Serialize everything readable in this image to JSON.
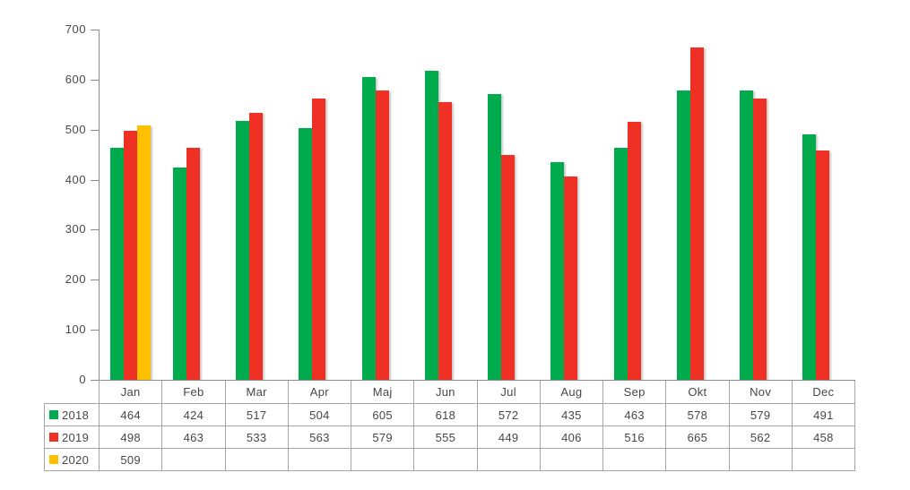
{
  "chart_data": {
    "type": "bar",
    "title": "",
    "xlabel": "",
    "ylabel": "",
    "categories": [
      "Jan",
      "Feb",
      "Mar",
      "Apr",
      "Maj",
      "Jun",
      "Jul",
      "Aug",
      "Sep",
      "Okt",
      "Nov",
      "Dec"
    ],
    "series": [
      {
        "name": "2018",
        "color": "#00AB4E",
        "values": [
          464,
          424,
          517,
          504,
          605,
          618,
          572,
          435,
          463,
          578,
          579,
          491
        ]
      },
      {
        "name": "2019",
        "color": "#EE3124",
        "values": [
          498,
          463,
          533,
          563,
          579,
          555,
          449,
          406,
          516,
          665,
          562,
          458
        ]
      },
      {
        "name": "2020",
        "color": "#FFC000",
        "values": [
          509,
          null,
          null,
          null,
          null,
          null,
          null,
          null,
          null,
          null,
          null,
          null
        ]
      }
    ],
    "ylim": [
      0,
      700
    ],
    "yticks": [
      0,
      100,
      200,
      300,
      400,
      500,
      600,
      700
    ],
    "grid": false,
    "legend_position": "data-table-left",
    "data_table": true,
    "axis_color": "#8c8c8c",
    "table_border_color": "#a6a6a6",
    "text_color": "#474747",
    "background_color": "#ffffff"
  }
}
